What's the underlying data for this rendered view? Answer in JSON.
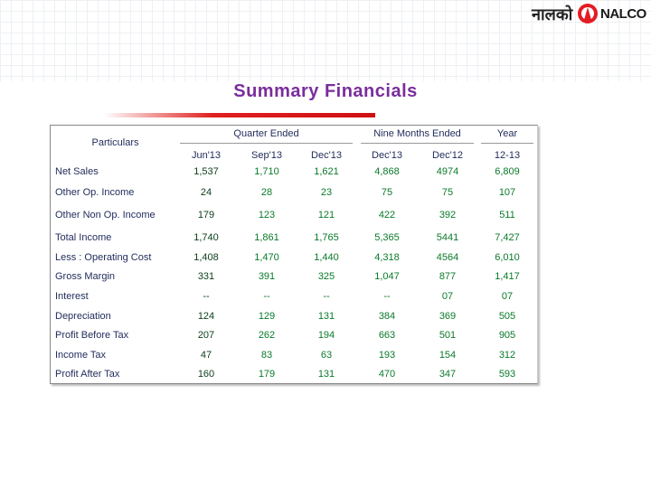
{
  "header": {
    "logo_hindi": "नालको",
    "logo": "NALCO",
    "title": "Summary Financials"
  },
  "table": {
    "particulars_header": "Particulars",
    "groups": [
      "Quarter Ended",
      "Nine Months Ended",
      "Year"
    ],
    "columns": [
      "Jun'13",
      "Sep'13",
      "Dec'13",
      "Dec'13",
      "Dec'12",
      "12-13"
    ],
    "rows": [
      [
        "Net Sales",
        "1,537",
        "1,710",
        "1,621",
        "4,868",
        "4974",
        "6,809"
      ],
      [
        "Other  Op. Income",
        "24",
        "28",
        "23",
        "75",
        "75",
        "107"
      ],
      [
        "Other  Non Op. Income",
        "179",
        "123",
        "121",
        "422",
        "392",
        "511"
      ],
      [
        "Total Income",
        "1,740",
        "1,861",
        "1,765",
        "5,365",
        "5441",
        "7,427"
      ],
      [
        "Less : Operating Cost",
        "1,408",
        "1,470",
        "1,440",
        "4,318",
        "4564",
        "6,010"
      ],
      [
        "Gross Margin",
        "331",
        "391",
        "325",
        "1,047",
        "877",
        "1,417"
      ],
      [
        "Interest",
        "--",
        "--",
        "--",
        "--",
        "07",
        "07"
      ],
      [
        "Depreciation",
        "124",
        "129",
        "131",
        "384",
        "369",
        "505"
      ],
      [
        "Profit Before Tax",
        "207",
        "262",
        "194",
        "663",
        "501",
        "905"
      ],
      [
        "Income Tax",
        "47",
        "83",
        "63",
        "193",
        "154",
        "312"
      ],
      [
        "Profit After Tax",
        "160",
        "179",
        "131",
        "470",
        "347",
        "593"
      ]
    ]
  }
}
